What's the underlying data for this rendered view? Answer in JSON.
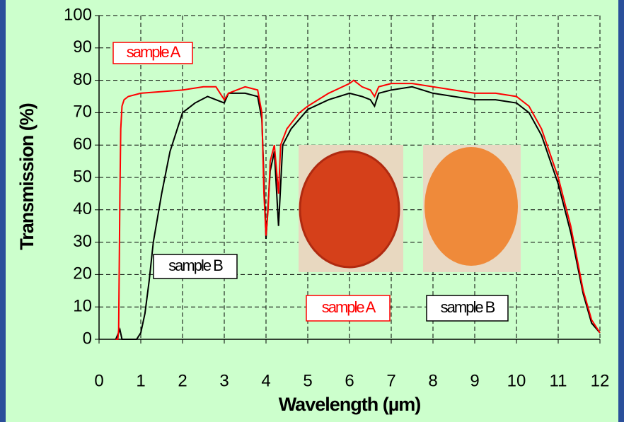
{
  "chart_data": {
    "type": "line",
    "x_label": "Wavelength (µm)",
    "y_label": "Transmission (%)",
    "xlim": [
      0,
      12
    ],
    "xticks": [
      0,
      1,
      2,
      3,
      4,
      5,
      6,
      7,
      8,
      9,
      10,
      11,
      12
    ],
    "ylim": [
      0,
      100
    ],
    "yticks": [
      0,
      10,
      20,
      30,
      40,
      50,
      60,
      70,
      80,
      90,
      100
    ],
    "grid": true,
    "series": [
      {
        "name": "sample A",
        "color": "#ff0000",
        "x": [
          0.4,
          0.45,
          0.47,
          0.5,
          0.52,
          0.55,
          0.6,
          0.7,
          1,
          1.5,
          2,
          2.5,
          2.8,
          3,
          3.1,
          3.3,
          3.5,
          3.8,
          3.9,
          3.95,
          4,
          4.05,
          4.1,
          4.2,
          4.3,
          4.35,
          4.5,
          4.8,
          5,
          5.5,
          6,
          6.1,
          6.3,
          6.5,
          6.6,
          6.7,
          7,
          7.5,
          8,
          8.5,
          9,
          9.5,
          10,
          10.3,
          10.6,
          11,
          11.3,
          11.6,
          11.8,
          12
        ],
        "values": [
          0,
          0,
          3,
          45,
          65,
          72,
          74,
          75,
          76,
          76.5,
          77,
          78,
          78,
          74,
          76,
          77,
          78,
          77,
          70,
          45,
          32,
          40,
          55,
          60,
          45,
          60,
          65,
          70,
          72,
          76,
          79,
          80,
          78,
          77,
          75,
          78,
          79,
          79,
          78,
          77,
          76,
          76,
          75,
          72,
          65,
          50,
          35,
          15,
          6,
          2
        ]
      },
      {
        "name": "sample B",
        "color": "#000000",
        "x": [
          0.4,
          0.5,
          0.55,
          0.9,
          1,
          1.1,
          1.2,
          1.3,
          1.5,
          1.7,
          1.9,
          2,
          2.3,
          2.6,
          3,
          3.1,
          3.5,
          3.8,
          3.9,
          4,
          4.1,
          4.2,
          4.3,
          4.4,
          4.6,
          5,
          5.5,
          6,
          6.3,
          6.5,
          6.6,
          6.7,
          7,
          7.5,
          8,
          8.5,
          9,
          9.5,
          10,
          10.3,
          10.6,
          11,
          11.3,
          11.6,
          11.8,
          12
        ],
        "values": [
          0,
          3,
          0,
          0,
          2,
          8,
          18,
          30,
          45,
          58,
          66,
          70,
          73,
          75,
          73,
          76,
          76,
          75,
          68,
          31,
          52,
          58,
          35,
          60,
          65,
          71,
          74,
          76,
          75,
          74,
          72,
          76,
          77,
          78,
          76,
          75,
          74,
          74,
          73,
          70,
          63,
          48,
          33,
          14,
          5,
          2
        ]
      }
    ]
  }
}
